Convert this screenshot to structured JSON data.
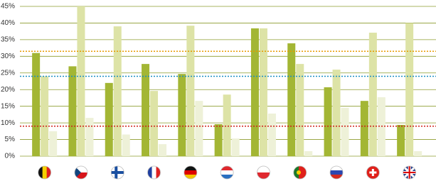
{
  "chart_data": {
    "type": "bar",
    "categories": [
      null,
      null,
      null,
      null,
      null,
      null,
      null,
      null,
      null,
      null,
      null
    ],
    "series": [
      {
        "color": "#a3b634",
        "values": [
          31,
          27,
          22,
          27.7,
          24.7,
          9.6,
          38.4,
          33.9,
          20.7,
          16.6,
          9.4
        ]
      },
      {
        "color": "#dde3a6",
        "values": [
          24,
          45,
          39,
          19.6,
          39.2,
          18.5,
          38.4,
          27.7,
          26,
          37.1,
          40
        ]
      },
      {
        "color": "#eef1d8",
        "values": [
          7.5,
          11.5,
          6.5,
          3.6,
          16.6,
          5.3,
          12.8,
          1.5,
          14.5,
          17.7,
          1.5
        ]
      }
    ],
    "ylim": [
      0,
      45
    ],
    "yticks": [
      {
        "value": 0,
        "label": "0%"
      },
      {
        "value": 5,
        "label": "5%"
      },
      {
        "value": 10,
        "label": "10%"
      },
      {
        "value": 15,
        "label": "15%"
      },
      {
        "value": 20,
        "label": "20%"
      },
      {
        "value": 25,
        "label": "25%"
      },
      {
        "value": 30,
        "label": "30%"
      },
      {
        "value": 35,
        "label": "35%"
      },
      {
        "value": 40,
        "label": "40%"
      },
      {
        "value": 45,
        "label": "45%"
      }
    ],
    "grid": true,
    "grid_color": "#8c9c2c",
    "reference_lines": [
      {
        "value": 31.5,
        "color": "#e89a00"
      },
      {
        "value": 24,
        "color": "#1a8fc4"
      },
      {
        "value": 9,
        "color": "#d0201a"
      }
    ]
  }
}
